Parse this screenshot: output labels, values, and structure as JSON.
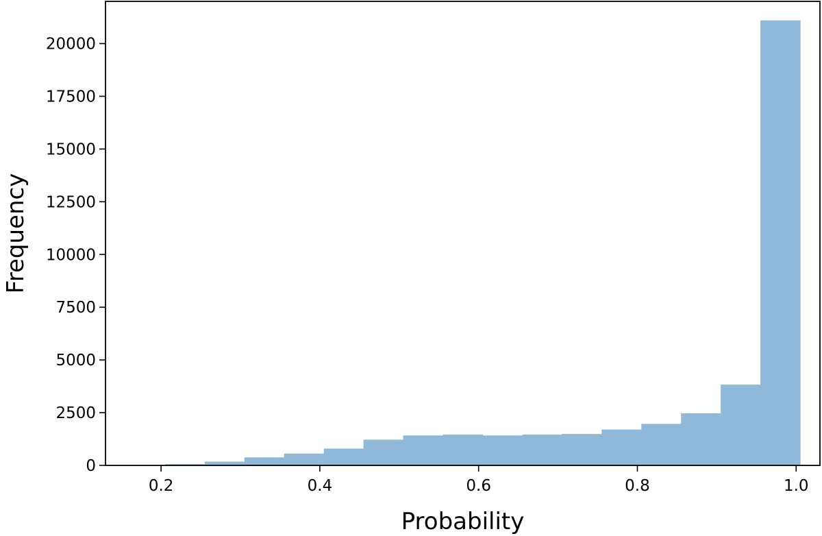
{
  "chart_data": {
    "type": "bar",
    "subtype": "histogram",
    "title": "",
    "xlabel": "Probability",
    "ylabel": "Frequency",
    "xlim": [
      0.13,
      1.03
    ],
    "ylim": [
      0,
      22000
    ],
    "grid": false,
    "bar_color": "#8fb8d9",
    "x_ticks": [
      "0.2",
      "0.4",
      "0.6",
      "0.8",
      "1.0"
    ],
    "y_ticks": [
      "0",
      "2500",
      "5000",
      "7500",
      "10000",
      "12500",
      "15000",
      "17500",
      "20000"
    ],
    "bins": [
      {
        "x0": 0.155,
        "x1": 0.205,
        "value": 0
      },
      {
        "x0": 0.205,
        "x1": 0.255,
        "value": 60
      },
      {
        "x0": 0.255,
        "x1": 0.305,
        "value": 180
      },
      {
        "x0": 0.305,
        "x1": 0.355,
        "value": 380
      },
      {
        "x0": 0.355,
        "x1": 0.405,
        "value": 560
      },
      {
        "x0": 0.405,
        "x1": 0.455,
        "value": 800
      },
      {
        "x0": 0.455,
        "x1": 0.505,
        "value": 1220
      },
      {
        "x0": 0.505,
        "x1": 0.555,
        "value": 1420
      },
      {
        "x0": 0.555,
        "x1": 0.605,
        "value": 1460
      },
      {
        "x0": 0.605,
        "x1": 0.655,
        "value": 1420
      },
      {
        "x0": 0.655,
        "x1": 0.705,
        "value": 1460
      },
      {
        "x0": 0.705,
        "x1": 0.755,
        "value": 1490
      },
      {
        "x0": 0.755,
        "x1": 0.805,
        "value": 1700
      },
      {
        "x0": 0.805,
        "x1": 0.855,
        "value": 1970
      },
      {
        "x0": 0.855,
        "x1": 0.905,
        "value": 2470
      },
      {
        "x0": 0.905,
        "x1": 0.955,
        "value": 3830
      },
      {
        "x0": 0.955,
        "x1": 1.005,
        "value": 21100
      }
    ]
  }
}
